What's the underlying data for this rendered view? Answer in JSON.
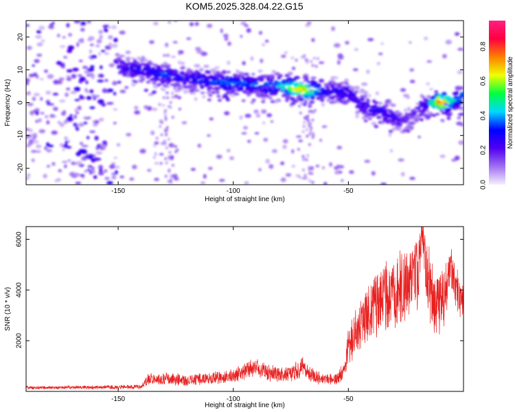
{
  "title": "KOM5.2025.328.04.22.G15",
  "chart_data": [
    {
      "type": "heatmap",
      "title": "KOM5.2025.328.04.22.G15",
      "xlabel": "Height of straight line (km)",
      "ylabel": "Frequency (Hz)",
      "xlim": [
        -190,
        0
      ],
      "ylim": [
        -25,
        25
      ],
      "x_ticks": [
        -150,
        -100,
        -50
      ],
      "y_ticks": [
        20,
        10,
        0,
        -10,
        -20
      ],
      "colorbar": {
        "label": "Normalized spectral amplitude",
        "range": [
          0,
          0.95
        ],
        "ticks": [
          "0.0",
          "0.2",
          "0.4",
          "0.6",
          "0.8"
        ],
        "tick_values": [
          0.0,
          0.2,
          0.4,
          0.6,
          0.8
        ],
        "colors": [
          "#f6f0fe",
          "#a070f0",
          "#5000f0",
          "#0000ff",
          "#00d8ff",
          "#00ff40",
          "#f0ff00",
          "#ff8000",
          "#ff0040",
          "#ff2080"
        ]
      },
      "ridge": {
        "x": [
          -150,
          -140,
          -130,
          -120,
          -110,
          -100,
          -90,
          -80,
          -70,
          -60,
          -50,
          -45,
          -40,
          -35,
          -30,
          -25,
          -20,
          -15,
          -10,
          -5,
          0
        ],
        "freq": [
          11,
          10,
          8.5,
          7.5,
          6.5,
          6,
          5.5,
          5,
          4,
          3.5,
          3,
          0,
          -1.5,
          -3,
          -4.5,
          -6,
          -2,
          0,
          0,
          0,
          2
        ],
        "amplitude": [
          0.25,
          0.3,
          0.35,
          0.3,
          0.35,
          0.4,
          0.35,
          0.45,
          0.75,
          0.3,
          0.3,
          0.25,
          0.3,
          0.3,
          0.25,
          0.2,
          0.2,
          0.3,
          0.85,
          0.5,
          0.4
        ]
      }
    },
    {
      "type": "line",
      "xlabel": "Height of straight line (km)",
      "ylabel": "SNR (10 * v/v)",
      "xlim": [
        -190,
        0
      ],
      "ylim": [
        0,
        6500
      ],
      "x_ticks": [
        -150,
        -100,
        -50
      ],
      "y_ticks": [
        2000,
        4000,
        6000
      ],
      "series": [
        {
          "name": "SNR",
          "color": "#e82020",
          "x": [
            -190,
            -180,
            -170,
            -160,
            -150,
            -140,
            -137,
            -130,
            -120,
            -110,
            -100,
            -95,
            -90,
            -85,
            -80,
            -75,
            -70,
            -65,
            -60,
            -55,
            -52,
            -50,
            -45,
            -40,
            -35,
            -30,
            -25,
            -20,
            -18,
            -15,
            -13,
            -10,
            -5,
            -3,
            0
          ],
          "y": [
            150,
            150,
            160,
            150,
            170,
            180,
            480,
            500,
            450,
            520,
            600,
            800,
            1000,
            750,
            650,
            700,
            950,
            600,
            450,
            500,
            800,
            1800,
            2500,
            3200,
            3600,
            3900,
            4300,
            4500,
            6300,
            4200,
            3400,
            3500,
            4800,
            4000,
            3500
          ],
          "spread": [
            60,
            60,
            60,
            60,
            70,
            80,
            200,
            220,
            200,
            220,
            250,
            300,
            350,
            300,
            250,
            300,
            350,
            250,
            200,
            200,
            350,
            700,
            900,
            1100,
            1200,
            1300,
            1400,
            1500,
            600,
            1400,
            1200,
            1200,
            900,
            800,
            600
          ]
        }
      ]
    }
  ]
}
